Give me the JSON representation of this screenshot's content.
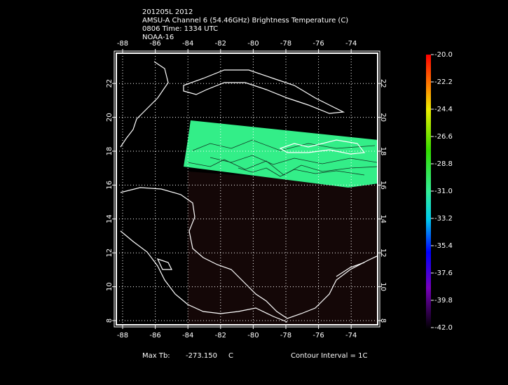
{
  "header": {
    "lines": [
      "201205L 2012",
      "AMSU-A Channel 6 (54.46GHz) Brightness Temperature (C)",
      "0806 Time: 1334 UTC",
      "NOAA-16"
    ]
  },
  "map": {
    "lon_ticks": [
      -88,
      -86,
      -84,
      -82,
      -80,
      -78,
      -76,
      -74
    ],
    "lat_ticks": [
      8,
      10,
      12,
      14,
      16,
      18,
      20,
      22
    ]
  },
  "colorbar": {
    "labels": [
      "-20.0",
      "-22.2",
      "-24.4",
      "-26.6",
      "-28.8",
      "-31.0",
      "-33.2",
      "-35.4",
      "-37.6",
      "-39.8",
      "-42.0"
    ]
  },
  "footer": {
    "max_label": "Max Tb:",
    "max_value": "-273.150",
    "unit": "C",
    "contour": "Contour Interval = 1C"
  }
}
